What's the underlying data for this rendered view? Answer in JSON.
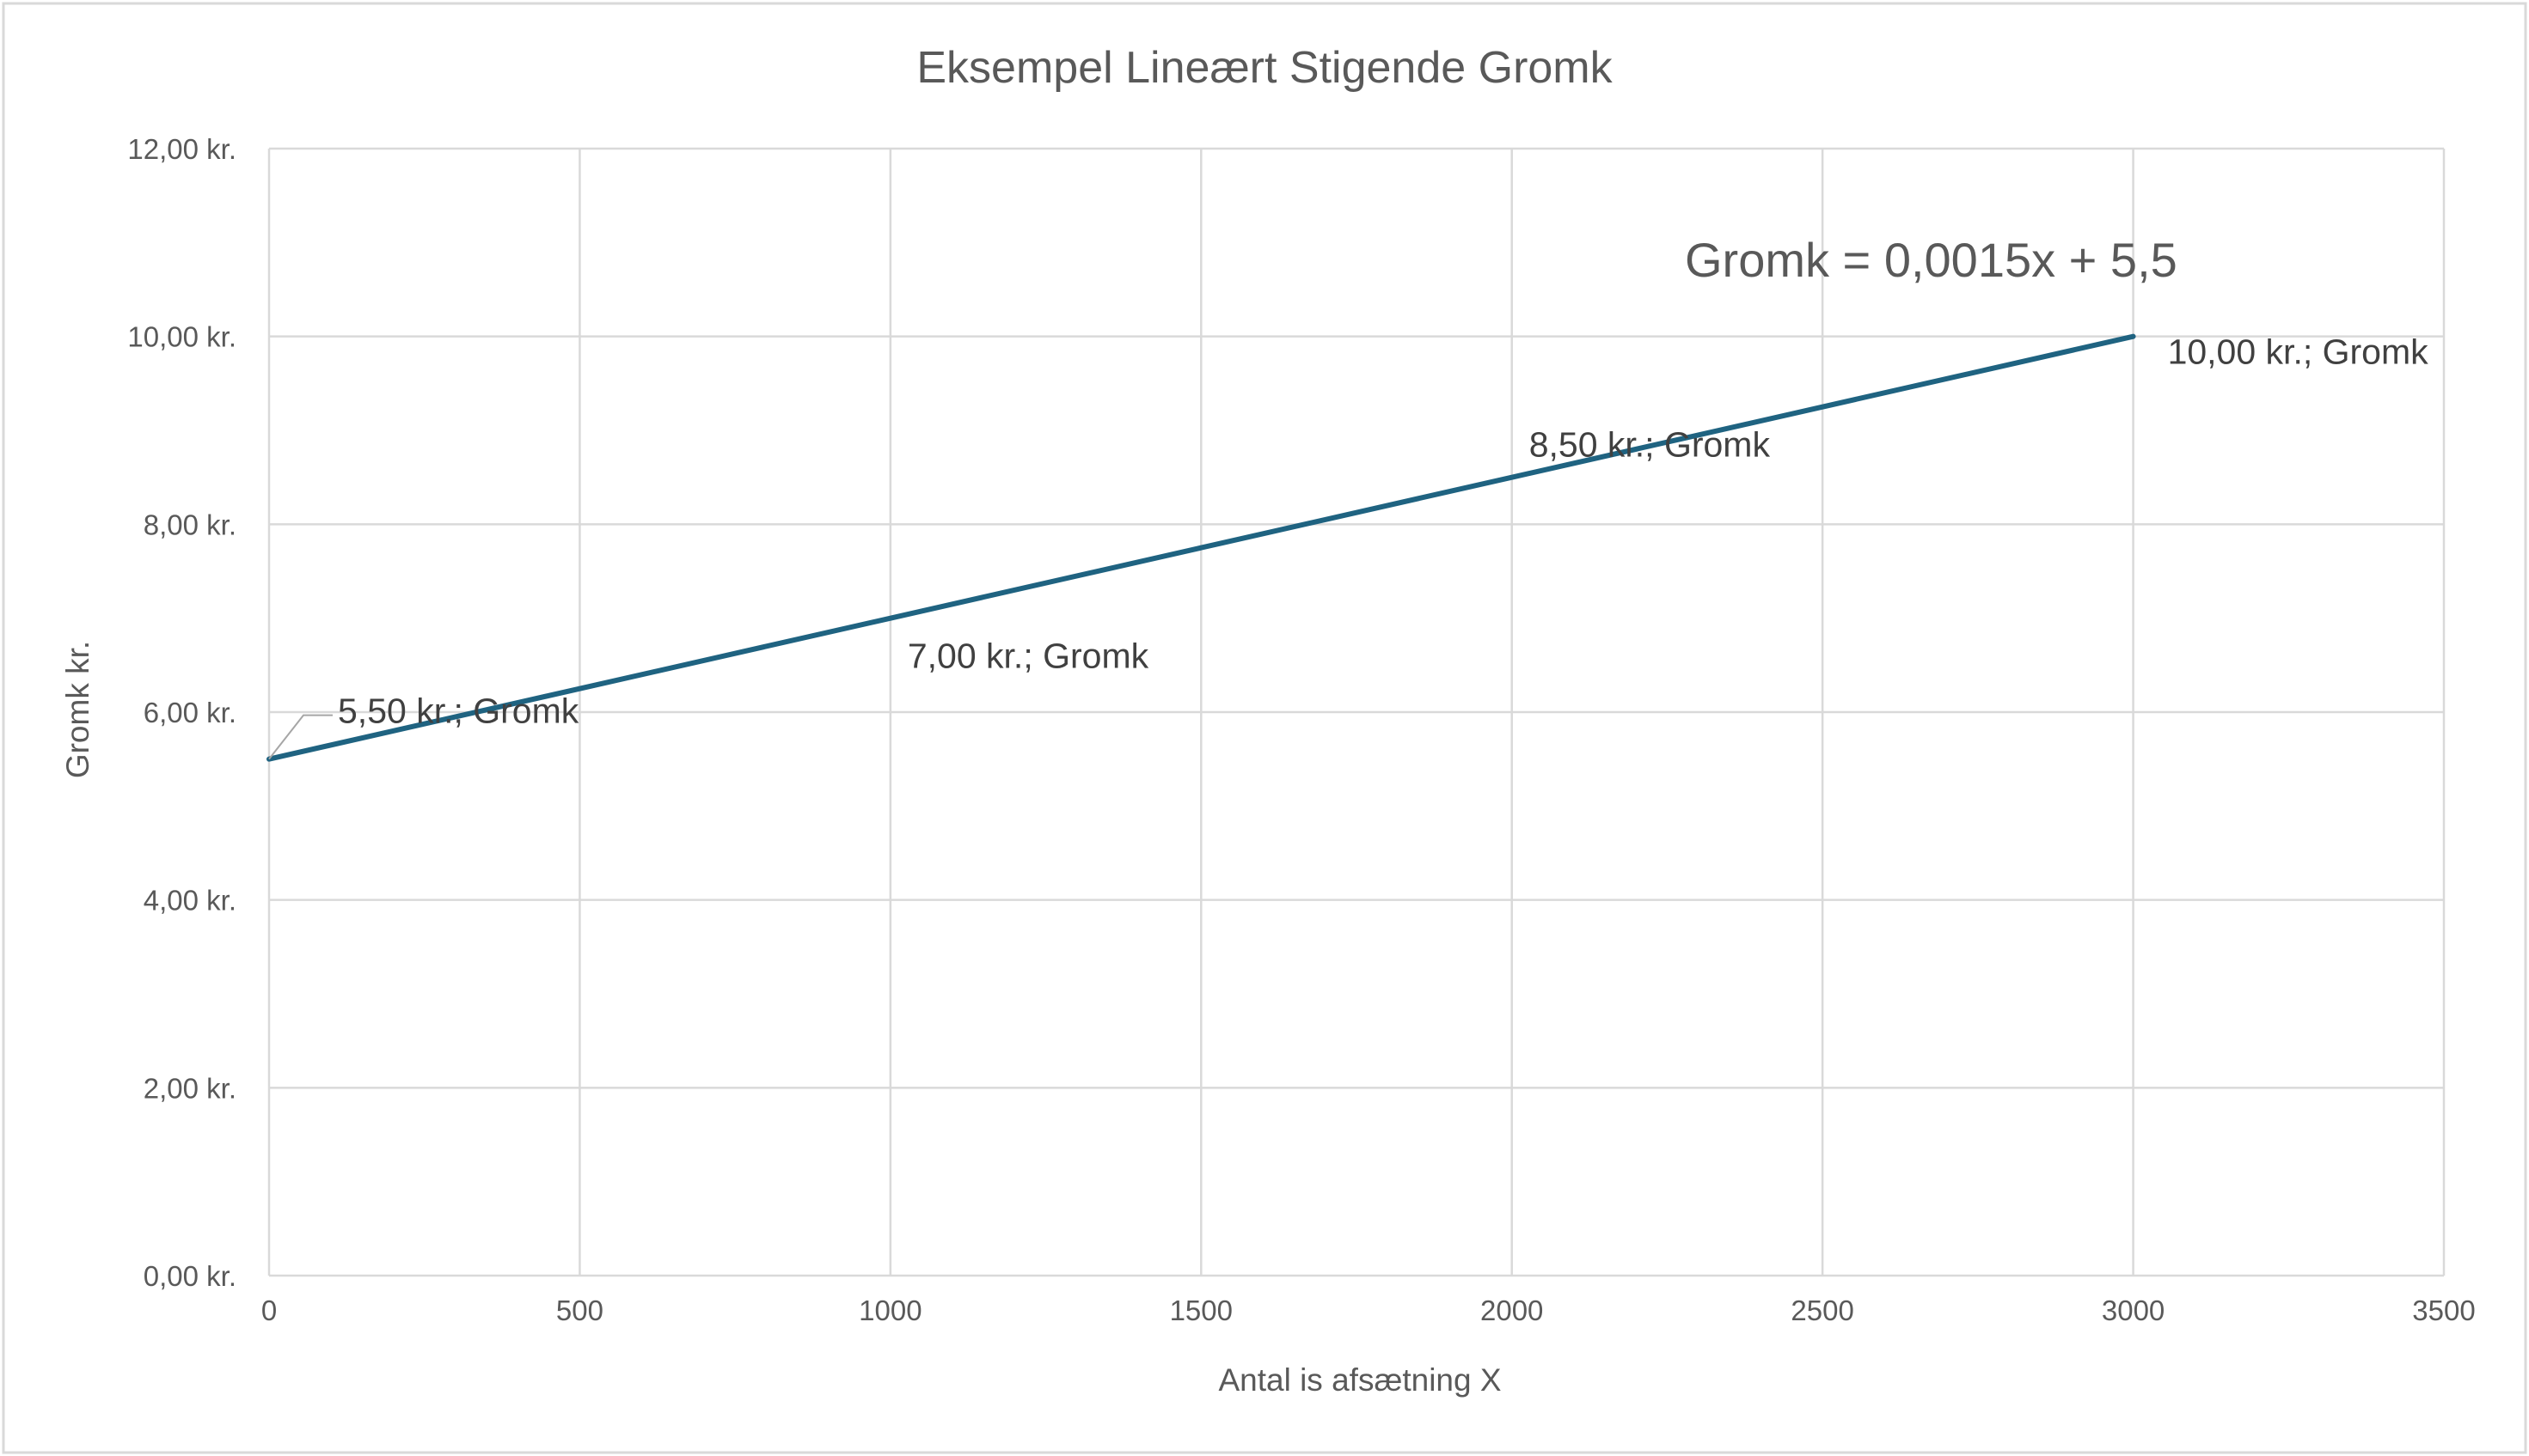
{
  "chart_data": {
    "type": "line",
    "title": "Eksempel Lineært Stigende Gromk",
    "xlabel": "Antal is afsætning X",
    "ylabel": "Gromk kr.",
    "xlim": [
      0,
      3500
    ],
    "ylim": [
      0,
      12
    ],
    "x_ticks": [
      0,
      500,
      1000,
      1500,
      2000,
      2500,
      3000,
      3500
    ],
    "x_tick_labels": [
      "0",
      "500",
      "1000",
      "1500",
      "2000",
      "2500",
      "3000",
      "3500"
    ],
    "y_ticks": [
      0,
      2,
      4,
      6,
      8,
      10,
      12
    ],
    "y_tick_labels": [
      "0,00 kr.",
      "2,00 kr.",
      "4,00 kr.",
      "6,00 kr.",
      "8,00 kr.",
      "10,00 kr.",
      "12,00 kr."
    ],
    "grid": true,
    "legend": "none",
    "annotation": "Gromk = 0,0015x + 5,5",
    "series": [
      {
        "name": "Gromk",
        "color": "#1f6381",
        "x": [
          0,
          1000,
          2000,
          3000
        ],
        "y": [
          5.5,
          7.0,
          8.5,
          10.0
        ],
        "data_labels": [
          "5,50 kr.; Gromk",
          "7,00 kr.; Gromk",
          "8,50 kr.; Gromk",
          "10,00 kr.; Gromk"
        ]
      }
    ]
  }
}
